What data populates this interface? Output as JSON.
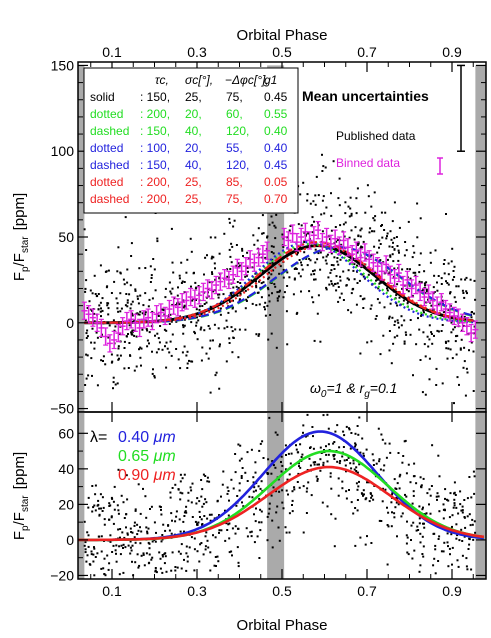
{
  "chart_data": [
    {
      "type": "line",
      "panel": "top",
      "xlabel_top": "Orbital Phase",
      "ylabel": "Fp/Fstar [ppm]",
      "ylabel_main": "F",
      "ylabel_sub1": "p",
      "ylabel_sep": "/F",
      "ylabel_sub2": "star",
      "ylabel_unit": "[ppm]",
      "xlim": [
        0.02,
        0.98
      ],
      "ylim": [
        -52,
        152
      ],
      "x_ticks": [
        0.1,
        0.3,
        0.5,
        0.7,
        0.9
      ],
      "x_tick_labels": [
        "0.1",
        "0.3",
        "0.5",
        "0.7",
        "0.9"
      ],
      "y_ticks": [
        -50,
        0,
        50,
        100,
        150
      ],
      "y_tick_labels": [
        "−50",
        "0",
        "50",
        "100",
        "150"
      ],
      "grid": false,
      "gray_bands": [
        [
          0.02,
          0.035
        ],
        [
          0.465,
          0.505
        ],
        [
          0.955,
          0.98
        ]
      ],
      "table": {
        "header": [
          "",
          "τc,",
          "σc[°],",
          "−Δφc[°],",
          "g1"
        ],
        "rows": [
          {
            "label": "solid",
            "values": [
              ": 150,",
              "25,",
              "75,",
              "0.45"
            ],
            "color": "#000000"
          },
          {
            "label": "dotted",
            "values": [
              ": 200,",
              "20,",
              "60,",
              "0.55"
            ],
            "color": "#22dd22"
          },
          {
            "label": "dashed",
            "values": [
              ": 150,",
              "40,",
              "120,",
              "0.40"
            ],
            "color": "#22dd22"
          },
          {
            "label": "dotted",
            "values": [
              ": 100,",
              "20,",
              "55,",
              "0.40"
            ],
            "color": "#2222dd"
          },
          {
            "label": "dashed",
            "values": [
              ": 150,",
              "40,",
              "120,",
              "0.45"
            ],
            "color": "#2222dd"
          },
          {
            "label": "dotted",
            "values": [
              ": 200,",
              "25,",
              "85,",
              "0.05"
            ],
            "color": "#ee2222"
          },
          {
            "label": "dashed",
            "values": [
              ": 200,",
              "25,",
              "75,",
              "0.70"
            ],
            "color": "#ee2222"
          }
        ]
      },
      "mean_uncertainties_label": "Mean uncertainties",
      "published_data_label": "Published data",
      "binned_data_label": "Binned data",
      "published_err": 20,
      "binned_err": 5,
      "annotation": "ω0=1 & rg=0.1",
      "annotation_parts": [
        "ω",
        "0",
        "=1 & r",
        "g",
        "=0.1"
      ],
      "model_colors": {
        "black": "#000000",
        "green": "#22dd22",
        "blue": "#2222dd",
        "red": "#ee2222",
        "binned": "#dd22dd"
      },
      "binned_data": {
        "x": [
          0.035,
          0.045,
          0.055,
          0.065,
          0.075,
          0.085,
          0.095,
          0.105,
          0.115,
          0.125,
          0.135,
          0.145,
          0.155,
          0.165,
          0.175,
          0.185,
          0.195,
          0.205,
          0.215,
          0.225,
          0.235,
          0.245,
          0.255,
          0.265,
          0.275,
          0.285,
          0.295,
          0.305,
          0.315,
          0.325,
          0.335,
          0.345,
          0.355,
          0.365,
          0.375,
          0.385,
          0.395,
          0.405,
          0.415,
          0.425,
          0.435,
          0.445,
          0.455,
          0.465,
          0.505,
          0.515,
          0.525,
          0.535,
          0.545,
          0.555,
          0.565,
          0.575,
          0.585,
          0.595,
          0.605,
          0.615,
          0.625,
          0.635,
          0.645,
          0.655,
          0.665,
          0.675,
          0.685,
          0.695,
          0.705,
          0.715,
          0.725,
          0.735,
          0.745,
          0.755,
          0.765,
          0.775,
          0.785,
          0.795,
          0.805,
          0.815,
          0.825,
          0.835,
          0.845,
          0.855,
          0.865,
          0.875,
          0.885,
          0.895,
          0.905,
          0.915,
          0.925,
          0.935,
          0.945,
          0.955
        ],
        "y": [
          7,
          5,
          3,
          0,
          -3,
          -8,
          -12,
          -10,
          -6,
          -2,
          1,
          2,
          0,
          -3,
          2,
          3,
          1,
          5,
          6,
          4,
          8,
          10,
          9,
          12,
          13,
          15,
          14,
          16,
          18,
          20,
          19,
          22,
          24,
          26,
          25,
          28,
          32,
          30,
          33,
          37,
          35,
          38,
          40,
          42,
          50,
          48,
          52,
          47,
          50,
          53,
          48,
          51,
          54,
          47,
          50,
          46,
          49,
          45,
          48,
          44,
          40,
          42,
          38,
          41,
          37,
          35,
          33,
          30,
          34,
          28,
          26,
          29,
          22,
          25,
          20,
          22,
          18,
          15,
          17,
          13,
          10,
          12,
          8,
          6,
          4,
          3,
          0,
          -2,
          -6,
          -4
        ]
      },
      "model_curves": [
        {
          "style": "solid",
          "color": "#000000",
          "phase_shift_deg": 75,
          "peak": 45,
          "sigma_deg": 70,
          "offset": 0
        },
        {
          "style": "dotted",
          "color": "#22dd22",
          "phase_shift_deg": 60,
          "peak": 46,
          "sigma_deg": 66,
          "offset": 0
        },
        {
          "style": "dashed",
          "color": "#22dd22",
          "phase_shift_deg": 120,
          "peak": 44,
          "sigma_deg": 74,
          "offset": 0
        },
        {
          "style": "dotted",
          "color": "#2222dd",
          "phase_shift_deg": 55,
          "peak": 47,
          "sigma_deg": 64,
          "offset": 0
        },
        {
          "style": "dashed",
          "color": "#2222dd",
          "phase_shift_deg": 120,
          "peak": 44,
          "sigma_deg": 75,
          "offset": 0
        },
        {
          "style": "dotted",
          "color": "#ee2222",
          "phase_shift_deg": 85,
          "peak": 45,
          "sigma_deg": 69,
          "offset": 0
        },
        {
          "style": "dashed",
          "color": "#ee2222",
          "phase_shift_deg": 75,
          "peak": 47,
          "sigma_deg": 70,
          "offset": 0
        }
      ]
    },
    {
      "type": "line",
      "panel": "bottom",
      "xlabel": "Orbital Phase",
      "ylabel": "Fp/Fstar [ppm]",
      "ylabel_main": "F",
      "ylabel_sub1": "p",
      "ylabel_sep": "/F",
      "ylabel_sub2": "star",
      "ylabel_unit": "[ppm]",
      "xlim": [
        0.02,
        0.98
      ],
      "ylim": [
        -22,
        72
      ],
      "x_ticks": [
        0.1,
        0.3,
        0.5,
        0.7,
        0.9
      ],
      "x_tick_labels": [
        "0.1",
        "0.3",
        "0.5",
        "0.7",
        "0.9"
      ],
      "y_ticks": [
        -20,
        0,
        20,
        40,
        60
      ],
      "y_tick_labels": [
        "−20",
        "0",
        "20",
        "40",
        "60"
      ],
      "grid": false,
      "gray_bands": [
        [
          0.02,
          0.035
        ],
        [
          0.465,
          0.505
        ],
        [
          0.955,
          0.98
        ]
      ],
      "legend_lambda": "λ=",
      "series": [
        {
          "name": "0.40",
          "unit": "μm",
          "color": "#2222dd",
          "peak": 61,
          "center": 0.59,
          "sigma": 0.135
        },
        {
          "name": "0.65",
          "unit": "μm",
          "color": "#22dd22",
          "peak": 50,
          "center": 0.61,
          "sigma": 0.14
        },
        {
          "name": "0.90",
          "unit": "μm",
          "color": "#ee2222",
          "peak": 41,
          "center": 0.61,
          "sigma": 0.145
        }
      ]
    }
  ]
}
